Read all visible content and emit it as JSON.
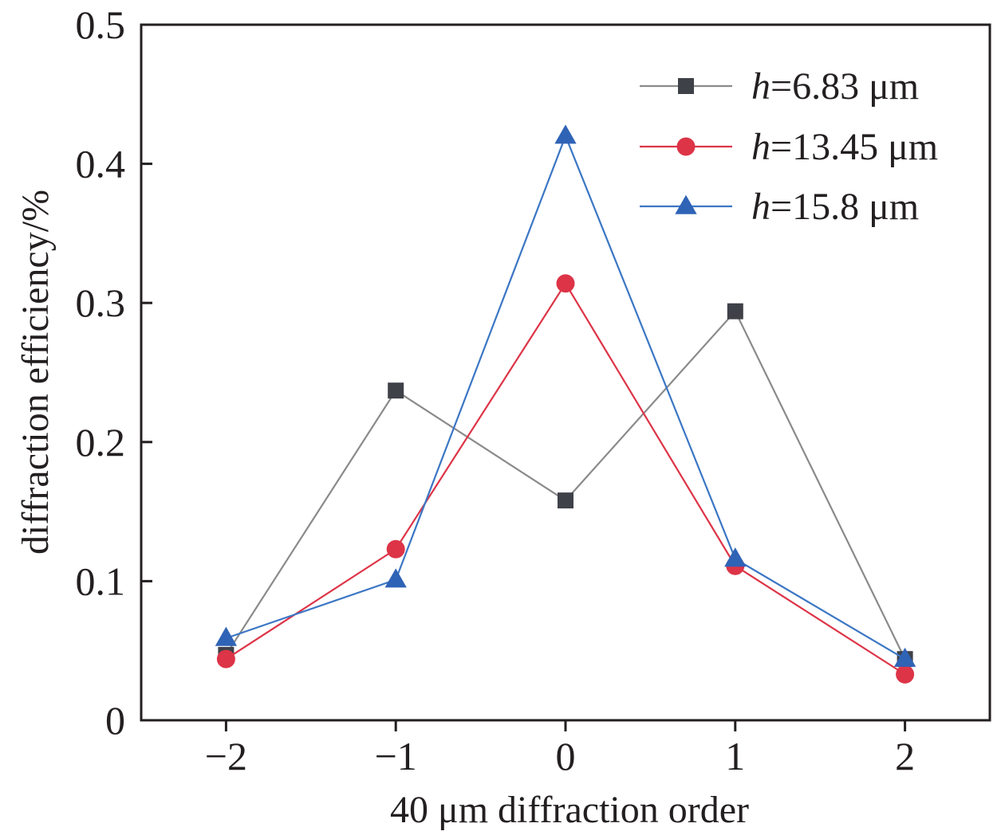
{
  "chart_data": {
    "type": "line",
    "xlabel": "40 μm diffraction order",
    "ylabel": "diffraction efficiency/%",
    "x": [
      -2,
      -1,
      0,
      1,
      2
    ],
    "x_tick_labels": [
      "−2",
      "−1",
      "0",
      "1",
      "2"
    ],
    "xlim": [
      -2.5,
      2.5
    ],
    "ylim": [
      0,
      0.5
    ],
    "y_ticks": [
      0,
      0.1,
      0.2,
      0.3,
      0.4,
      0.5
    ],
    "y_tick_labels": [
      "0",
      "0.1",
      "0.2",
      "0.3",
      "0.4",
      "0.5"
    ],
    "grid": false,
    "legend_position": "top-right",
    "series": [
      {
        "name_var": "h",
        "name_rest": "=6.83 μm",
        "values": [
          0.047,
          0.237,
          0.158,
          0.294,
          0.044
        ],
        "color": "#3f4149",
        "line_color": "#8a8a8a",
        "marker": "square"
      },
      {
        "name_var": "h",
        "name_rest": "=13.45 μm",
        "values": [
          0.044,
          0.123,
          0.314,
          0.111,
          0.033
        ],
        "color": "#dd3447",
        "line_color": "#dd3447",
        "marker": "circle"
      },
      {
        "name_var": "h",
        "name_rest": "=15.8 μm",
        "values": [
          0.059,
          0.101,
          0.42,
          0.116,
          0.044
        ],
        "color": "#2f63b6",
        "line_color": "#3b76c4",
        "marker": "triangle"
      }
    ]
  }
}
